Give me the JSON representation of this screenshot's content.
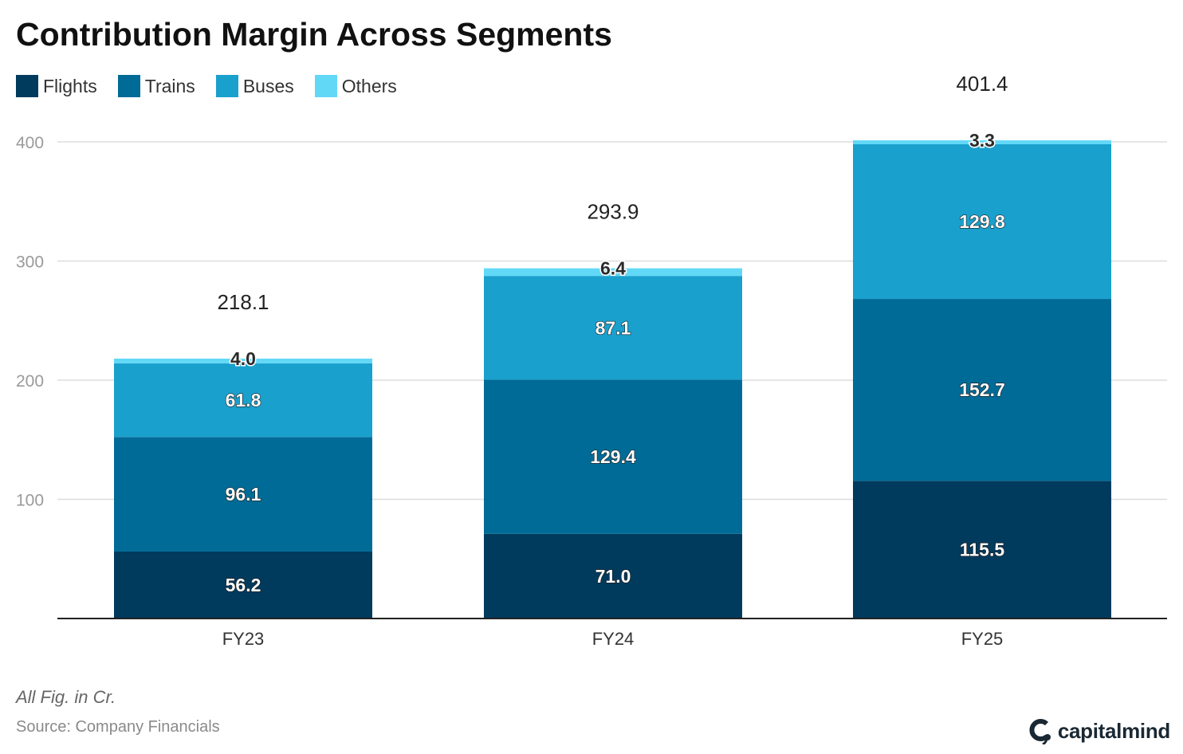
{
  "title": "Contribution Margin Across Segments",
  "legend": [
    {
      "label": "Flights",
      "color": "#003a5d"
    },
    {
      "label": "Trains",
      "color": "#006b96"
    },
    {
      "label": "Buses",
      "color": "#1aa0cd"
    },
    {
      "label": "Others",
      "color": "#62d8f7"
    }
  ],
  "chart_data": {
    "type": "bar",
    "stacked": true,
    "categories": [
      "FY23",
      "FY24",
      "FY25"
    ],
    "series": [
      {
        "name": "Flights",
        "values": [
          56.2,
          71.0,
          115.5
        ],
        "color": "#003a5d"
      },
      {
        "name": "Trains",
        "values": [
          96.1,
          129.4,
          152.7
        ],
        "color": "#006b96"
      },
      {
        "name": "Buses",
        "values": [
          61.8,
          87.1,
          129.8
        ],
        "color": "#1aa0cd"
      },
      {
        "name": "Others",
        "values": [
          4.0,
          6.4,
          3.3
        ],
        "color": "#62d8f7"
      }
    ],
    "value_labels": [
      [
        "56.2",
        "71.0",
        "115.5"
      ],
      [
        "96.1",
        "129.4",
        "152.7"
      ],
      [
        "61.8",
        "87.1",
        "129.8"
      ],
      [
        "4.0",
        "6.4",
        "3.3"
      ]
    ],
    "totals": [
      218.1,
      293.9,
      401.4
    ],
    "total_labels": [
      "218.1",
      "293.9",
      "401.4"
    ],
    "yticks": [
      100,
      200,
      300,
      400
    ],
    "ytick_labels": [
      "100",
      "200",
      "300",
      "400"
    ],
    "ylim": [
      0,
      400
    ],
    "grid": true,
    "legend_position": "top-left"
  },
  "footnote": "All Fig. in Cr.",
  "source": "Source: Company Financials",
  "brand": {
    "name": "capitalmind",
    "icon": "capitalmind-logo-icon"
  }
}
